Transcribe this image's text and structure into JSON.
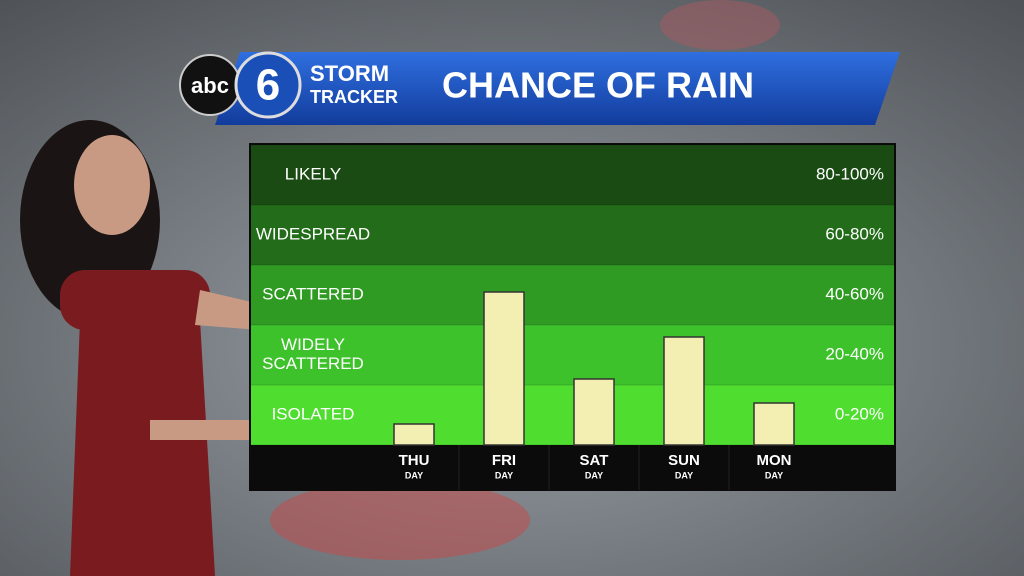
{
  "header": {
    "network": "abc",
    "channel": "6",
    "brand_line1": "STORM",
    "brand_line2": "TRACKER"
  },
  "chart_data": {
    "type": "bar",
    "title": "CHANCE OF RAIN",
    "categories": [
      "THU",
      "FRI",
      "SAT",
      "SUN",
      "MON"
    ],
    "category_sublabels": [
      "DAY",
      "DAY",
      "DAY",
      "DAY",
      "DAY"
    ],
    "values": [
      7,
      51,
      22,
      36,
      14
    ],
    "color": "#f3efb3",
    "ylim": [
      0,
      100
    ],
    "yticks": [
      0,
      20,
      40,
      60,
      80,
      100
    ],
    "bands": [
      {
        "label": "ISOLATED",
        "range": "0-20%",
        "color": "#4fdd2f"
      },
      {
        "label": "WIDELY SCATTERED",
        "range": "20-40%",
        "color": "#3ec22b"
      },
      {
        "label": "SCATTERED",
        "range": "40-60%",
        "color": "#2f9b22"
      },
      {
        "label": "WIDESPREAD",
        "range": "60-80%",
        "color": "#236d1a"
      },
      {
        "label": "LIKELY",
        "range": "80-100%",
        "color": "#1a4b13"
      }
    ]
  }
}
